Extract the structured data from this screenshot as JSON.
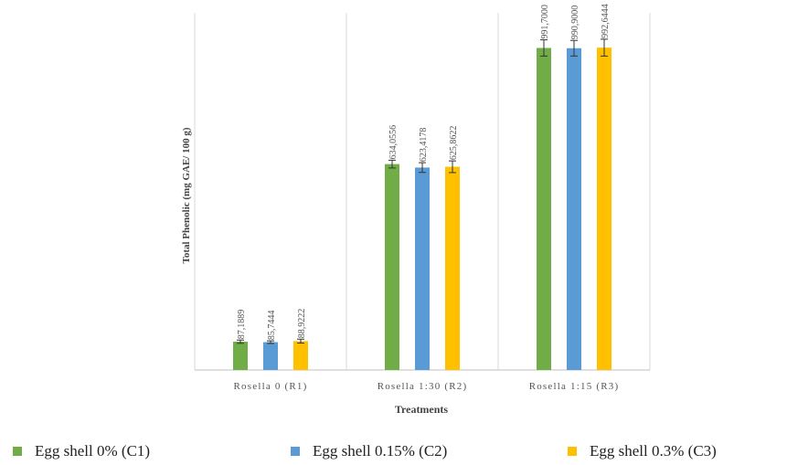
{
  "chart_data": {
    "type": "bar",
    "title": "",
    "xlabel": "Treatments",
    "ylabel": "Total Phenolic (mg GAE/ 100 g)",
    "ylim": [
      0,
      1100
    ],
    "grid": false,
    "legend_position": "bottom",
    "categories": [
      "Rosella 0 (R1)",
      "Rosella 1:30 (R2)",
      "Rosella 1:15 (R3)"
    ],
    "series": [
      {
        "name": "Egg shell 0% (C1)",
        "color": "#70AD47",
        "values": [
          87.1889,
          634.0556,
          991.7
        ],
        "labels": [
          "87,1889",
          "634,0556",
          "991,7000"
        ],
        "errors": [
          5,
          12,
          25
        ]
      },
      {
        "name": "Egg shell 0.15% (C2)",
        "color": "#5B9BD5",
        "values": [
          85.7444,
          623.4178,
          990.9
        ],
        "labels": [
          "85,7444",
          "623,4178",
          "990,9000"
        ],
        "errors": [
          4,
          15,
          24
        ]
      },
      {
        "name": "Egg shell 0.3% (C3)",
        "color": "#FFC000",
        "values": [
          88.9222,
          625.8622,
          992.6444
        ],
        "labels": [
          "88,9222",
          "625,8622",
          "992,6444"
        ],
        "errors": [
          6,
          18,
          26
        ]
      }
    ]
  }
}
